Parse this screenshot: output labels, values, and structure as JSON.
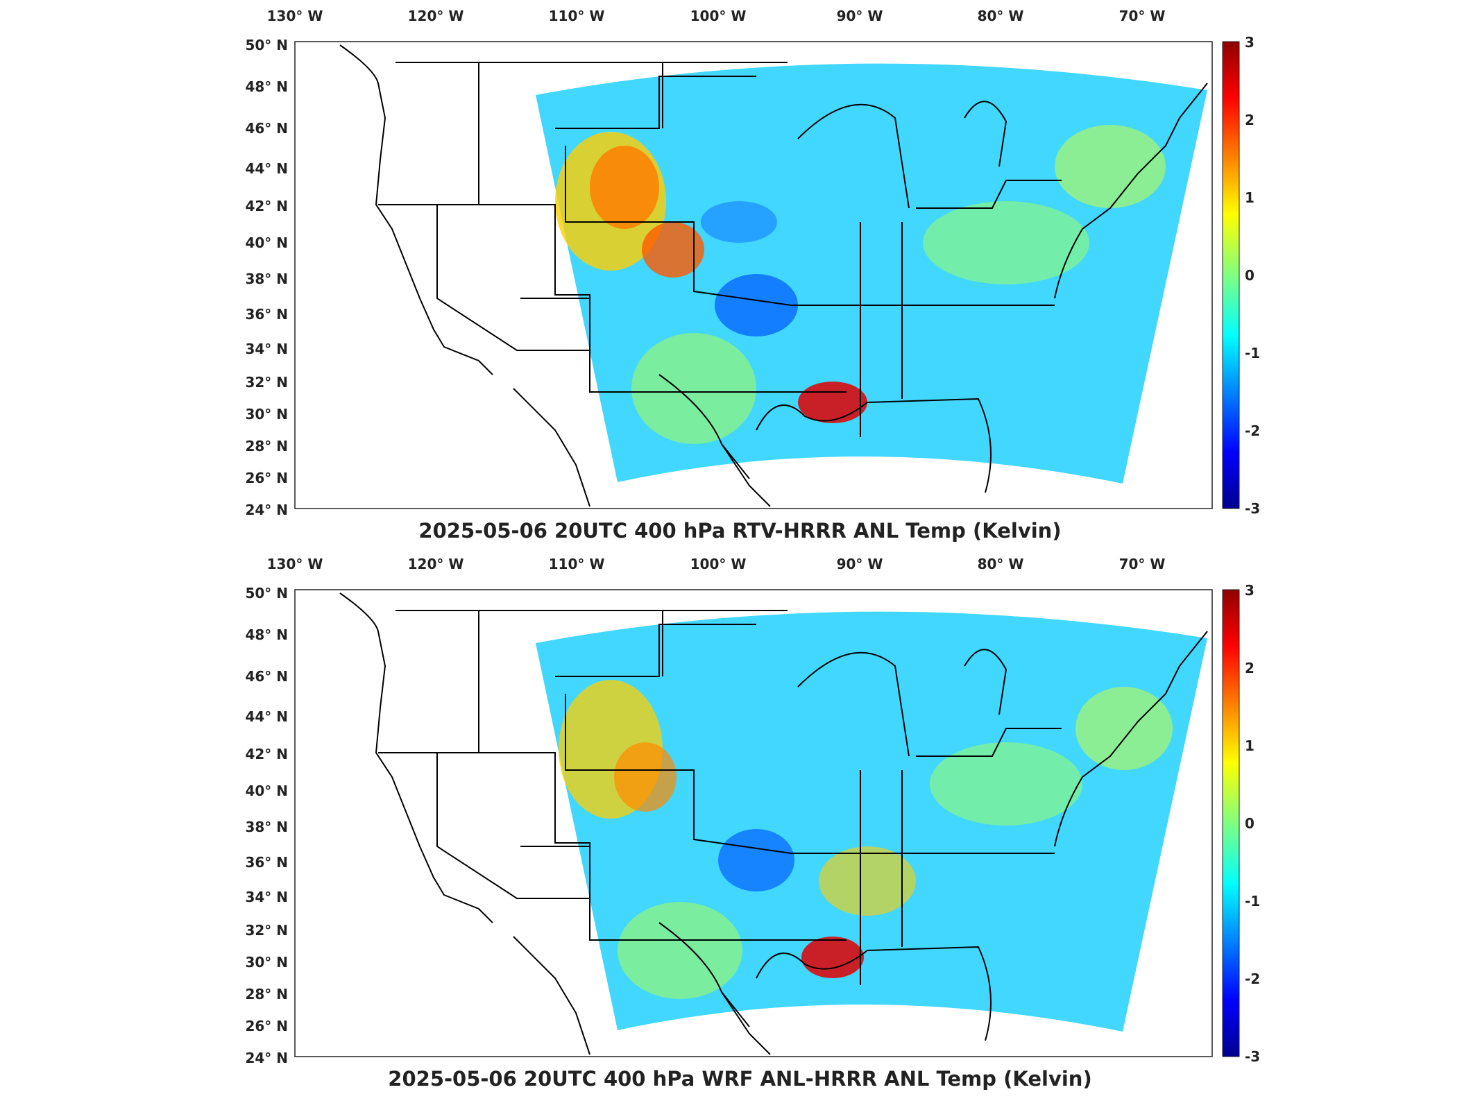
{
  "panels": [
    {
      "title": "2025-05-06 20UTC 400 hPa RTV-HRRR ANL Temp (Kelvin)",
      "lon_ticks": [
        "130° W",
        "120° W",
        "110° W",
        "100° W",
        "90° W",
        "80° W",
        "70° W"
      ],
      "lat_ticks": [
        "50° N",
        "48° N",
        "46° N",
        "44° N",
        "42° N",
        "40° N",
        "38° N",
        "36° N",
        "34° N",
        "32° N",
        "30° N",
        "28° N",
        "26° N",
        "24° N"
      ],
      "colorbar": {
        "min": -3,
        "max": 3,
        "ticks": [
          "3",
          "2",
          "1",
          "0",
          "-1",
          "-2",
          "-3"
        ],
        "colormap": "jet"
      }
    },
    {
      "title": "2025-05-06 20UTC 400 hPa WRF ANL-HRRR ANL Temp (Kelvin)",
      "lon_ticks": [
        "130° W",
        "120° W",
        "110° W",
        "100° W",
        "90° W",
        "80° W",
        "70° W"
      ],
      "lat_ticks": [
        "50° N",
        "48° N",
        "46° N",
        "44° N",
        "42° N",
        "40° N",
        "38° N",
        "36° N",
        "34° N",
        "32° N",
        "30° N",
        "28° N",
        "26° N",
        "24° N"
      ],
      "colorbar": {
        "min": -3,
        "max": 3,
        "ticks": [
          "3",
          "2",
          "1",
          "0",
          "-1",
          "-2",
          "-3"
        ],
        "colormap": "jet"
      }
    }
  ],
  "colors": {
    "cold": "#00008f",
    "neutral": "#40e0d0",
    "warm": "#8f0000",
    "background": "#41d7ff"
  }
}
